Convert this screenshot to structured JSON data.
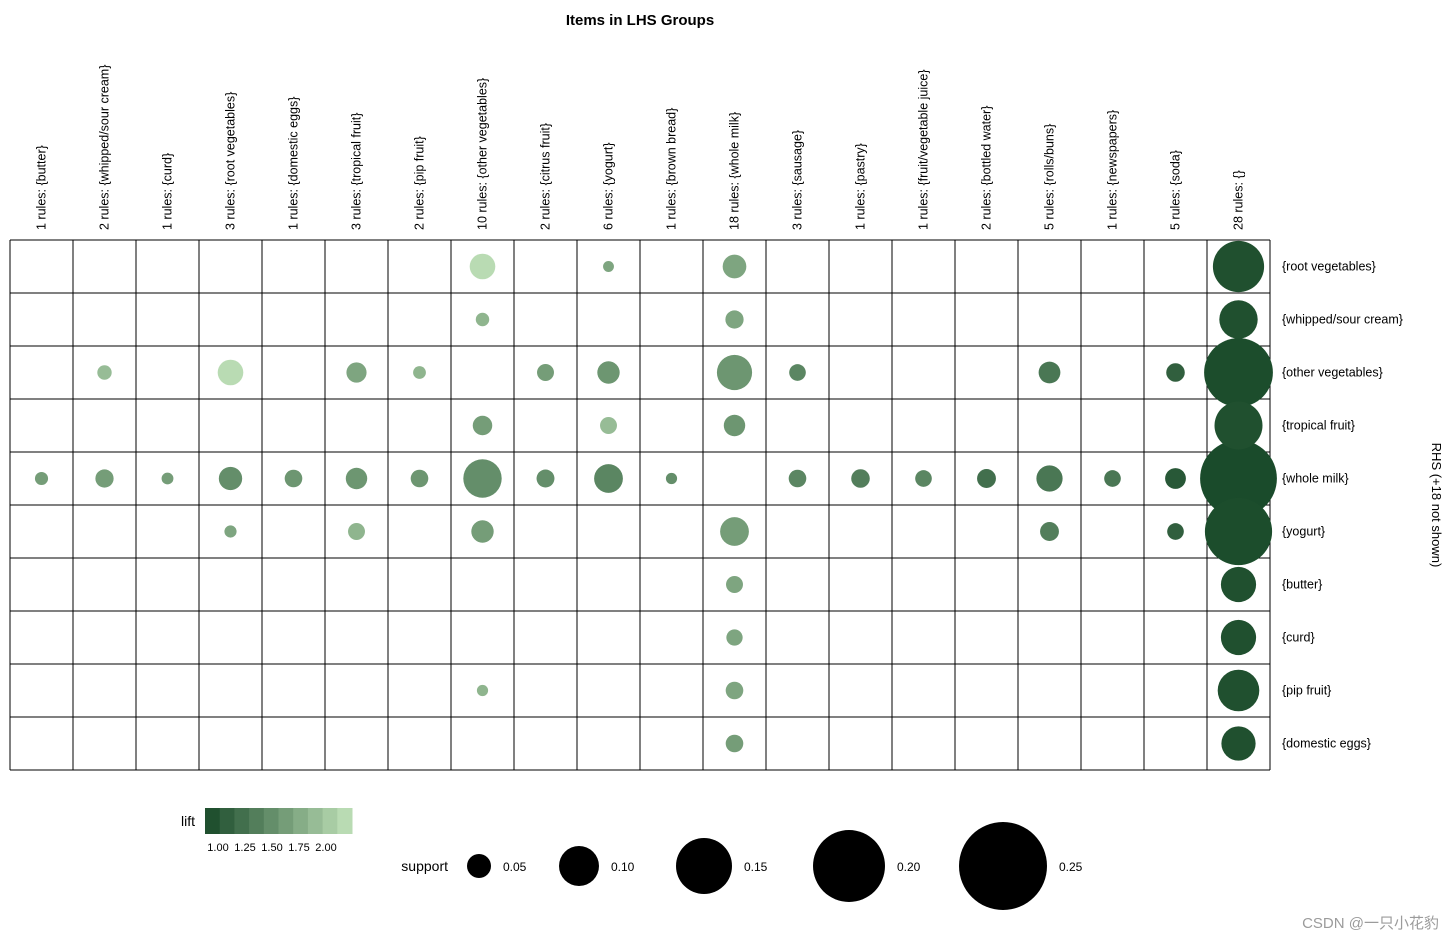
{
  "watermark": "CSDN @一只小花豹",
  "chart_data": {
    "type": "scatter",
    "subtype": "grouped-bubble-matrix (association rules)",
    "title": "Items in LHS Groups",
    "rhs_label": "RHS (+18 not shown)",
    "columns": [
      "1 rules: {butter}",
      "2 rules: {whipped/sour cream}",
      "1 rules: {curd}",
      "3 rules: {root vegetables}",
      "1 rules: {domestic eggs}",
      "3 rules: {tropical fruit}",
      "2 rules: {pip fruit}",
      "10 rules: {other vegetables}",
      "2 rules: {citrus fruit}",
      "6 rules: {yogurt}",
      "1 rules: {brown bread}",
      "18 rules: {whole milk}",
      "3 rules: {sausage}",
      "1 rules: {pastry}",
      "1 rules: {fruit/vegetable juice}",
      "2 rules: {bottled water}",
      "5 rules: {rolls/buns}",
      "1 rules: {newspapers}",
      "5 rules: {soda}",
      "28 rules: {}"
    ],
    "rows": [
      "{root vegetables}",
      "{whipped/sour cream}",
      "{other vegetables}",
      "{tropical fruit}",
      "{whole milk}",
      "{yogurt}",
      "{butter}",
      "{curd}",
      "{pip fruit}",
      "{domestic eggs}"
    ],
    "bubble_format": [
      "col_index",
      "row_index",
      "support",
      "lift"
    ],
    "bubbles": [
      [
        0,
        4,
        0.016,
        1.55
      ],
      [
        1,
        2,
        0.02,
        1.75
      ],
      [
        1,
        4,
        0.032,
        1.55
      ],
      [
        2,
        4,
        0.012,
        1.55
      ],
      [
        3,
        2,
        0.055,
        1.95
      ],
      [
        3,
        4,
        0.048,
        1.45
      ],
      [
        3,
        5,
        0.013,
        1.6
      ],
      [
        4,
        4,
        0.03,
        1.5
      ],
      [
        5,
        2,
        0.038,
        1.6
      ],
      [
        5,
        4,
        0.042,
        1.5
      ],
      [
        5,
        5,
        0.028,
        1.7
      ],
      [
        6,
        2,
        0.015,
        1.7
      ],
      [
        6,
        4,
        0.03,
        1.5
      ],
      [
        7,
        0,
        0.055,
        1.95
      ],
      [
        7,
        1,
        0.017,
        1.7
      ],
      [
        7,
        3,
        0.036,
        1.55
      ],
      [
        7,
        4,
        0.095,
        1.45
      ],
      [
        7,
        5,
        0.045,
        1.55
      ],
      [
        7,
        8,
        0.01,
        1.7
      ],
      [
        8,
        2,
        0.028,
        1.55
      ],
      [
        8,
        4,
        0.031,
        1.45
      ],
      [
        9,
        0,
        0.009,
        1.6
      ],
      [
        9,
        2,
        0.045,
        1.5
      ],
      [
        9,
        3,
        0.028,
        1.75
      ],
      [
        9,
        4,
        0.065,
        1.4
      ],
      [
        10,
        4,
        0.01,
        1.45
      ],
      [
        11,
        0,
        0.049,
        1.6
      ],
      [
        11,
        1,
        0.032,
        1.6
      ],
      [
        11,
        2,
        0.085,
        1.5
      ],
      [
        11,
        3,
        0.042,
        1.5
      ],
      [
        11,
        5,
        0.065,
        1.55
      ],
      [
        11,
        6,
        0.028,
        1.6
      ],
      [
        11,
        7,
        0.026,
        1.6
      ],
      [
        11,
        8,
        0.03,
        1.6
      ],
      [
        11,
        9,
        0.03,
        1.55
      ],
      [
        12,
        2,
        0.027,
        1.4
      ],
      [
        12,
        4,
        0.03,
        1.4
      ],
      [
        13,
        4,
        0.033,
        1.35
      ],
      [
        14,
        4,
        0.027,
        1.4
      ],
      [
        15,
        4,
        0.034,
        1.25
      ],
      [
        16,
        2,
        0.043,
        1.3
      ],
      [
        16,
        4,
        0.057,
        1.3
      ],
      [
        16,
        5,
        0.034,
        1.35
      ],
      [
        17,
        4,
        0.027,
        1.3
      ],
      [
        18,
        2,
        0.033,
        1.15
      ],
      [
        18,
        4,
        0.04,
        1.1
      ],
      [
        18,
        5,
        0.027,
        1.15
      ],
      [
        19,
        0,
        0.135,
        1.05
      ],
      [
        19,
        1,
        0.095,
        1.05
      ],
      [
        19,
        2,
        0.19,
        1.03
      ],
      [
        19,
        3,
        0.125,
        1.05
      ],
      [
        19,
        4,
        0.215,
        1.02
      ],
      [
        19,
        5,
        0.185,
        1.03
      ],
      [
        19,
        6,
        0.085,
        1.05
      ],
      [
        19,
        7,
        0.085,
        1.05
      ],
      [
        19,
        8,
        0.105,
        1.05
      ],
      [
        19,
        9,
        0.082,
        1.05
      ]
    ],
    "legend": {
      "lift_label": "lift",
      "lift_ticks": [
        "1.00",
        "1.25",
        "1.50",
        "1.75",
        "2.00"
      ],
      "lift_range": [
        1.0,
        2.0
      ],
      "support_label": "support",
      "support_ticks": [
        "0.05",
        "0.10",
        "0.15",
        "0.20",
        "0.25"
      ]
    },
    "colors": {
      "lift_low": "#174828",
      "lift_high": "#c2e3ba",
      "support_legend": "#000000"
    },
    "layout_hints": {
      "x_axis": "LHS groups (labels rotated, on top)",
      "y_axis": "RHS items (labels on right)",
      "grid": true,
      "legend_position": "bottom"
    }
  }
}
